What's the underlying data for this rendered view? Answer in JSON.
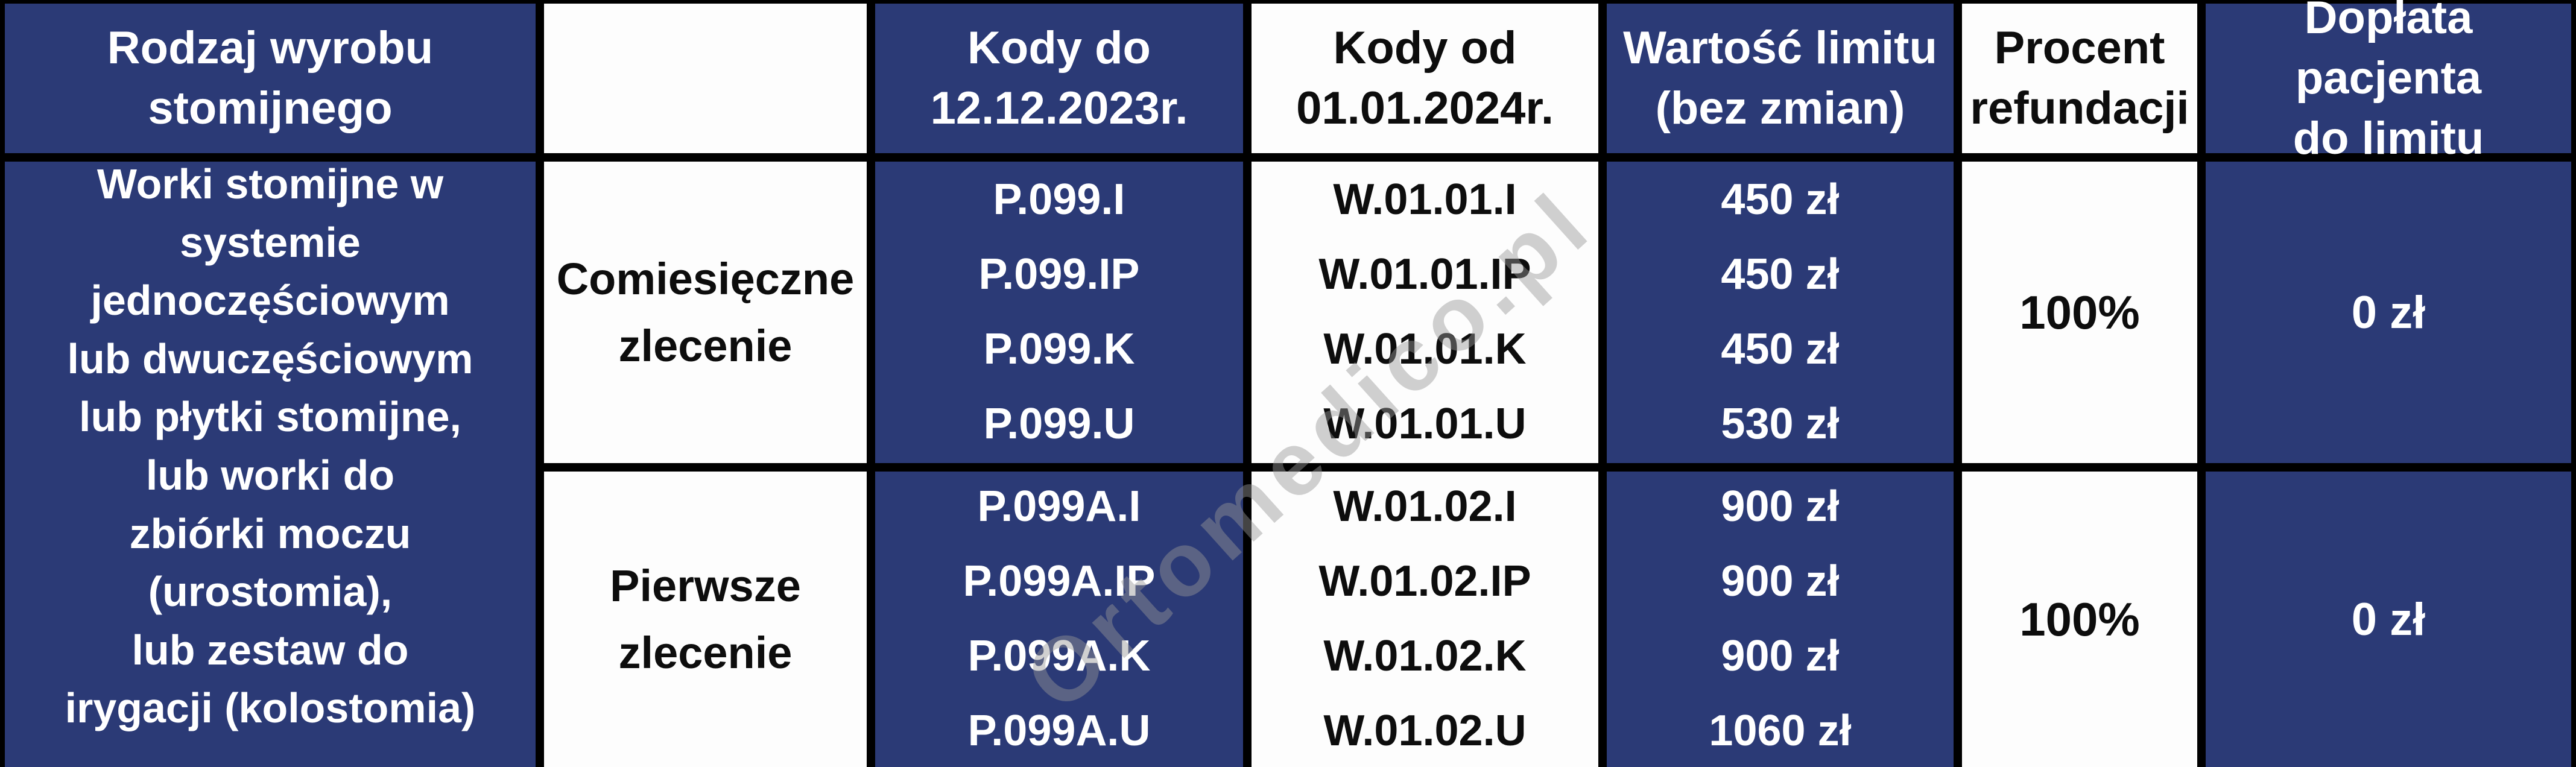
{
  "colors": {
    "navy": "#2b3a76",
    "white": "#fdfdfd",
    "gridline": "#000000",
    "watermark_gray": "rgba(150,150,150,0.45)"
  },
  "watermark": {
    "text": "Ortomedico.pl"
  },
  "table": {
    "headers": {
      "product_type": "Rodzaj wyrobu\nstomijnego",
      "order_type": "",
      "codes_old": "Kody do\n12.12.2023r.",
      "codes_new": "Kody od\n01.01.2024r.",
      "limit_value": "Wartość limitu\n(bez zmian)",
      "refund_percent": "Procent\nrefundacji",
      "patient_copay": "Dopłata pacjenta\ndo limitu"
    },
    "category": "Worki stomijne w systemie\njednoczęściowym\nlub dwuczęściowym\nlub płytki stomijne,\nlub worki do\nzbiórki moczu (urostomia),\nlub zestaw do\nirygacji (kolostomia)",
    "rows": [
      {
        "order_type": "Comiesięczne\nzlecenie",
        "codes_old": "P.099.I\nP.099.IP\nP.099.K\nP.099.U",
        "codes_new": "W.01.01.I\nW.01.01.IP\nW.01.01.K\nW.01.01.U",
        "limit_value": "450 zł\n450 zł\n450 zł\n530 zł",
        "refund_percent": "100%",
        "patient_copay": "0 zł"
      },
      {
        "order_type": "Pierwsze\nzlecenie",
        "codes_old": "P.099A.I\nP.099A.IP\nP.099A.K\nP.099A.U",
        "codes_new": "W.01.02.I\nW.01.02.IP\nW.01.02.K\nW.01.02.U",
        "limit_value": "900 zł\n900 zł\n900 zł\n1060 zł",
        "refund_percent": "100%",
        "patient_copay": "0 zł"
      }
    ]
  }
}
